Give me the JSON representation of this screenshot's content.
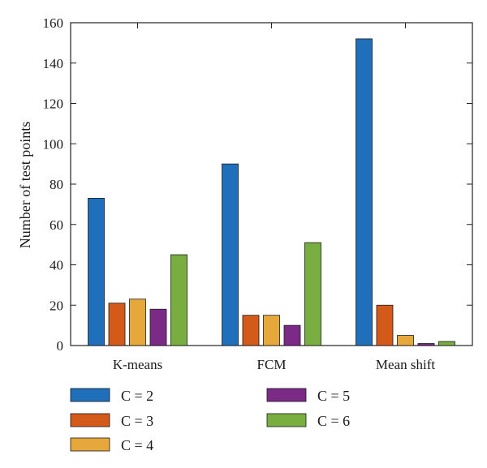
{
  "chart_data": {
    "type": "bar",
    "title": "",
    "xlabel": "",
    "ylabel": "Number of test points",
    "ylim": [
      0,
      160
    ],
    "yticks": [
      0,
      20,
      40,
      60,
      80,
      100,
      120,
      140,
      160
    ],
    "categories": [
      "K-means",
      "FCM",
      "Mean shift"
    ],
    "series": [
      {
        "name": "C = 2",
        "color": "#1f6fba",
        "values": [
          73,
          90,
          152
        ]
      },
      {
        "name": "C = 3",
        "color": "#d45a1a",
        "values": [
          21,
          15,
          20
        ]
      },
      {
        "name": "C = 4",
        "color": "#e6a83a",
        "values": [
          23,
          15,
          5
        ]
      },
      {
        "name": "C = 5",
        "color": "#7b2a86",
        "values": [
          18,
          10,
          1
        ]
      },
      {
        "name": "C = 6",
        "color": "#78ad3f",
        "values": [
          45,
          51,
          2
        ]
      }
    ],
    "grid": false,
    "legend_position": "bottom"
  }
}
